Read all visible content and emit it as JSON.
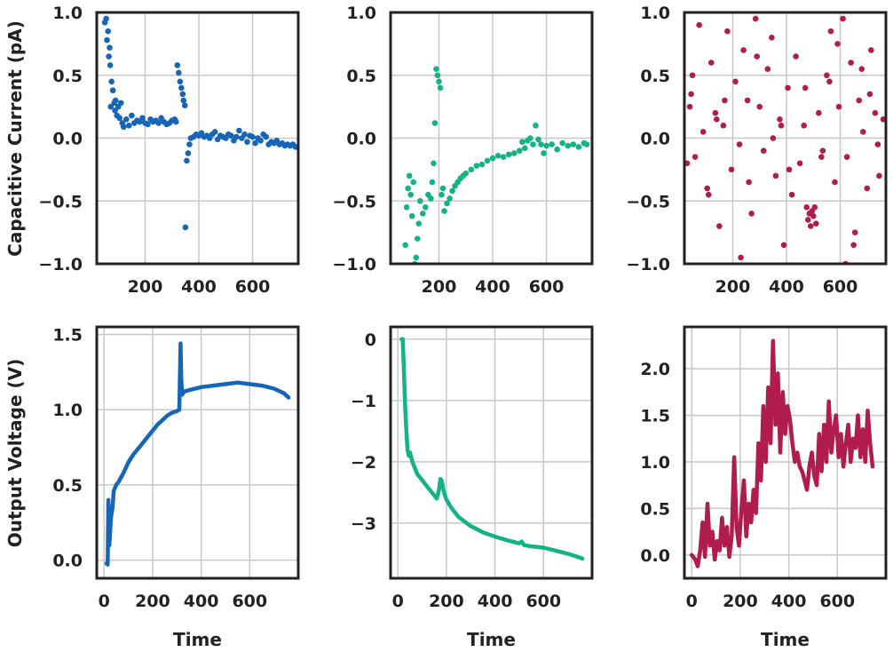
{
  "figure": {
    "row_ylabels": [
      "Capacitive Current (pA)",
      "Output Voltage (V)"
    ],
    "xlabel": "Time"
  },
  "chart_data": [
    {
      "type": "scatter",
      "row": 0,
      "col": 0,
      "color": "#1565b8",
      "xlim": [
        20,
        770
      ],
      "ylim": [
        -1.0,
        1.0
      ],
      "xticks": [
        200,
        400,
        600
      ],
      "yticks": [
        -1.0,
        -0.5,
        0.0,
        0.5,
        1.0
      ],
      "ytick_labels": [
        "−1.0",
        "−0.5",
        "0.0",
        "0.5",
        "1.0"
      ],
      "ylabel": "Capacitive Current (pA)",
      "xlabel": "",
      "x": [
        50,
        55,
        58,
        62,
        65,
        68,
        70,
        72,
        75,
        80,
        85,
        88,
        90,
        95,
        100,
        105,
        110,
        115,
        120,
        130,
        140,
        150,
        160,
        170,
        180,
        190,
        200,
        210,
        220,
        230,
        240,
        250,
        260,
        270,
        280,
        290,
        300,
        310,
        315,
        320,
        325,
        330,
        335,
        340,
        343,
        348,
        350,
        355,
        360,
        365,
        370,
        380,
        390,
        400,
        410,
        420,
        430,
        440,
        450,
        460,
        470,
        480,
        490,
        500,
        510,
        520,
        530,
        540,
        550,
        560,
        570,
        580,
        590,
        600,
        610,
        620,
        630,
        640,
        650,
        660,
        670,
        680,
        690,
        700,
        710,
        720,
        730,
        740,
        750,
        760
      ],
      "y": [
        0.92,
        0.95,
        0.78,
        0.85,
        0.65,
        0.72,
        0.58,
        0.25,
        0.45,
        0.38,
        0.28,
        0.22,
        0.3,
        0.18,
        0.25,
        0.16,
        0.28,
        0.12,
        0.09,
        0.15,
        0.1,
        0.18,
        0.12,
        0.14,
        0.13,
        0.16,
        0.12,
        0.11,
        0.15,
        0.13,
        0.14,
        0.12,
        0.16,
        0.13,
        0.11,
        0.12,
        0.14,
        0.15,
        0.13,
        0.58,
        0.52,
        0.45,
        0.4,
        0.35,
        0.3,
        0.26,
        -0.71,
        -0.18,
        -0.12,
        -0.05,
        0.0,
        0.01,
        0.03,
        0.02,
        0.04,
        0.01,
        0.02,
        0.0,
        0.03,
        0.05,
        -0.01,
        0.02,
        0.01,
        0.0,
        0.03,
        0.02,
        -0.02,
        0.01,
        0.06,
        0.0,
        0.03,
        -0.03,
        0.02,
        0.01,
        -0.04,
        0.0,
        -0.02,
        0.03,
        0.01,
        -0.05,
        -0.03,
        -0.04,
        -0.02,
        -0.05,
        -0.04,
        -0.06,
        -0.05,
        -0.06,
        -0.05,
        -0.07
      ]
    },
    {
      "type": "scatter",
      "row": 0,
      "col": 1,
      "color": "#14b287",
      "xlim": [
        20,
        770
      ],
      "ylim": [
        -1.0,
        1.0
      ],
      "xticks": [
        200,
        400,
        600
      ],
      "yticks": [
        -1.0,
        -0.5,
        0.0,
        0.5,
        1.0
      ],
      "ytick_labels": [
        "−1.0",
        "−0.5",
        "0.0",
        "0.5",
        "1.0"
      ],
      "ylabel": "",
      "xlabel": "",
      "x": [
        75,
        80,
        85,
        90,
        95,
        100,
        105,
        110,
        115,
        120,
        125,
        130,
        140,
        150,
        160,
        170,
        175,
        180,
        185,
        190,
        195,
        200,
        205,
        210,
        215,
        220,
        230,
        240,
        250,
        260,
        270,
        280,
        290,
        300,
        320,
        340,
        360,
        380,
        400,
        420,
        440,
        460,
        480,
        500,
        510,
        520,
        530,
        540,
        550,
        560,
        570,
        580,
        590,
        600,
        620,
        640,
        660,
        680,
        700,
        720,
        740,
        750
      ],
      "y": [
        -0.85,
        -0.55,
        -0.4,
        -0.3,
        -0.45,
        -0.62,
        -0.35,
        -1.0,
        -0.95,
        -0.8,
        -0.68,
        -0.5,
        -0.6,
        -0.55,
        -0.45,
        -0.48,
        -0.35,
        -0.2,
        0.12,
        0.55,
        0.5,
        0.45,
        0.4,
        -0.45,
        -0.4,
        -0.58,
        -0.52,
        -0.48,
        -0.42,
        -0.38,
        -0.35,
        -0.32,
        -0.3,
        -0.28,
        -0.25,
        -0.22,
        -0.21,
        -0.18,
        -0.16,
        -0.14,
        -0.15,
        -0.13,
        -0.12,
        -0.1,
        -0.03,
        -0.08,
        -0.02,
        0.0,
        -0.05,
        0.1,
        -0.01,
        -0.05,
        -0.12,
        -0.06,
        -0.05,
        -0.09,
        -0.04,
        -0.06,
        -0.05,
        -0.07,
        -0.04,
        -0.05
      ]
    },
    {
      "type": "scatter",
      "row": 0,
      "col": 2,
      "color": "#b01c4c",
      "xlim": [
        20,
        770
      ],
      "ylim": [
        -1.0,
        1.0
      ],
      "xticks": [
        200,
        400,
        600
      ],
      "yticks": [
        -1.0,
        -0.5,
        0.0,
        0.5,
        1.0
      ],
      "ytick_labels": [
        "−1.0",
        "−0.5",
        "0.0",
        "0.5",
        "1.0"
      ],
      "ylabel": "",
      "xlabel": "",
      "x": [
        30,
        45,
        60,
        75,
        90,
        105,
        120,
        135,
        150,
        165,
        180,
        195,
        210,
        225,
        240,
        255,
        270,
        285,
        300,
        315,
        330,
        345,
        360,
        375,
        390,
        405,
        420,
        435,
        450,
        465,
        475,
        480,
        485,
        490,
        495,
        500,
        505,
        510,
        520,
        535,
        550,
        565,
        580,
        595,
        610,
        625,
        640,
        655,
        670,
        685,
        700,
        715,
        730,
        745,
        760,
        50,
        110,
        170,
        230,
        290,
        350,
        410,
        470,
        530,
        590,
        650,
        710,
        40,
        140,
        260,
        380,
        560,
        620,
        680,
        740
      ],
      "y": [
        -0.2,
        0.35,
        -0.15,
        0.9,
        0.05,
        -0.4,
        0.6,
        0.2,
        -0.7,
        0.1,
        0.85,
        -0.25,
        0.45,
        -0.05,
        0.7,
        0.3,
        -0.6,
        0.95,
        0.25,
        -0.1,
        0.55,
        0.8,
        -0.3,
        0.15,
        -0.85,
        0.4,
        -0.45,
        0.65,
        -0.2,
        0.1,
        -0.55,
        -0.65,
        -0.6,
        -0.7,
        -0.58,
        -0.62,
        -0.55,
        -0.68,
        0.2,
        -0.1,
        0.5,
        0.85,
        -0.35,
        0.25,
        0.95,
        -0.15,
        0.6,
        -0.75,
        0.3,
        0.05,
        -0.4,
        0.7,
        0.2,
        -0.3,
        0.15,
        0.5,
        -0.45,
        0.3,
        -0.95,
        0.65,
        0.0,
        -0.25,
        0.4,
        -0.15,
        0.75,
        -0.85,
        0.35,
        0.25,
        0.15,
        -0.35,
        0.1,
        0.45,
        -1.0,
        0.55,
        -0.05
      ]
    },
    {
      "type": "line",
      "row": 1,
      "col": 0,
      "color": "#1565b8",
      "xlim": [
        -30,
        800
      ],
      "ylim": [
        -0.12,
        1.55
      ],
      "xticks": [
        0,
        200,
        400,
        600
      ],
      "yticks": [
        0.0,
        0.5,
        1.0,
        1.5
      ],
      "ytick_labels": [
        "0.0",
        "0.5",
        "1.0",
        "1.5"
      ],
      "ylabel": "Output Voltage (V)",
      "xlabel": "Time",
      "x": [
        10,
        15,
        18,
        22,
        28,
        35,
        40,
        50,
        60,
        80,
        100,
        120,
        150,
        180,
        200,
        220,
        240,
        260,
        280,
        300,
        310,
        315,
        318,
        322,
        330,
        350,
        400,
        450,
        500,
        550,
        600,
        650,
        700,
        740,
        760
      ],
      "y": [
        -0.02,
        -0.03,
        0.4,
        0.1,
        0.28,
        0.35,
        0.46,
        0.5,
        0.52,
        0.58,
        0.65,
        0.7,
        0.76,
        0.82,
        0.86,
        0.9,
        0.93,
        0.96,
        0.98,
        0.99,
        1.0,
        1.44,
        1.2,
        1.1,
        1.12,
        1.13,
        1.15,
        1.16,
        1.17,
        1.18,
        1.17,
        1.16,
        1.14,
        1.11,
        1.08
      ]
    },
    {
      "type": "line",
      "row": 1,
      "col": 1,
      "color": "#14b287",
      "xlim": [
        -30,
        800
      ],
      "ylim": [
        -3.9,
        0.2
      ],
      "xticks": [
        0,
        200,
        400,
        600
      ],
      "yticks": [
        -3,
        -2,
        -1,
        0
      ],
      "ytick_labels": [
        "−3",
        "−2",
        "−1",
        "0"
      ],
      "ylabel": "",
      "xlabel": "Time",
      "x": [
        15,
        20,
        25,
        30,
        35,
        40,
        45,
        50,
        60,
        70,
        80,
        100,
        120,
        140,
        160,
        170,
        175,
        180,
        185,
        190,
        200,
        220,
        250,
        300,
        350,
        400,
        450,
        500,
        510,
        520,
        550,
        600,
        650,
        700,
        740,
        760
      ],
      "y": [
        0.0,
        0.0,
        -0.5,
        -1.1,
        -1.5,
        -1.8,
        -1.9,
        -1.85,
        -2.0,
        -2.1,
        -2.2,
        -2.3,
        -2.4,
        -2.5,
        -2.6,
        -2.45,
        -2.28,
        -2.3,
        -2.4,
        -2.5,
        -2.62,
        -2.75,
        -2.9,
        -3.05,
        -3.15,
        -3.22,
        -3.28,
        -3.33,
        -3.3,
        -3.36,
        -3.38,
        -3.4,
        -3.45,
        -3.5,
        -3.55,
        -3.58
      ]
    },
    {
      "type": "line",
      "row": 1,
      "col": 2,
      "color": "#b01c4c",
      "xlim": [
        -30,
        800
      ],
      "ylim": [
        -0.25,
        2.45
      ],
      "xticks": [
        0,
        200,
        400,
        600
      ],
      "yticks": [
        0.0,
        0.5,
        1.0,
        1.5,
        2.0
      ],
      "ytick_labels": [
        "0.0",
        "0.5",
        "1.0",
        "1.5",
        "2.0"
      ],
      "ylabel": "",
      "xlabel": "Time",
      "x": [
        0,
        15,
        25,
        35,
        45,
        55,
        65,
        75,
        85,
        95,
        105,
        115,
        125,
        135,
        145,
        155,
        165,
        175,
        185,
        195,
        205,
        215,
        225,
        235,
        245,
        255,
        265,
        275,
        285,
        295,
        305,
        315,
        325,
        335,
        345,
        355,
        365,
        375,
        385,
        395,
        405,
        415,
        425,
        435,
        445,
        455,
        465,
        475,
        485,
        495,
        505,
        515,
        525,
        535,
        545,
        555,
        565,
        575,
        585,
        595,
        605,
        615,
        625,
        635,
        645,
        655,
        665,
        675,
        685,
        695,
        705,
        715,
        725,
        735,
        745
      ],
      "y": [
        0.0,
        -0.05,
        -0.12,
        0.05,
        0.35,
        -0.02,
        0.55,
        0.1,
        0.25,
        -0.05,
        0.15,
        0.05,
        0.4,
        0.1,
        0.3,
        -0.02,
        0.2,
        1.05,
        0.3,
        0.1,
        0.5,
        0.8,
        0.2,
        0.55,
        0.35,
        0.7,
        0.45,
        1.2,
        0.8,
        1.6,
        1.0,
        1.8,
        1.2,
        2.3,
        1.4,
        1.95,
        1.1,
        1.75,
        1.3,
        1.6,
        1.45,
        1.2,
        1.0,
        1.1,
        0.95,
        0.9,
        0.8,
        0.7,
        0.95,
        1.1,
        0.85,
        0.75,
        1.3,
        0.9,
        1.4,
        1.0,
        1.65,
        1.1,
        1.35,
        1.5,
        1.05,
        1.3,
        0.95,
        1.2,
        1.4,
        1.0,
        1.25,
        1.15,
        1.5,
        1.05,
        1.35,
        1.0,
        1.55,
        1.2,
        0.95
      ]
    }
  ]
}
